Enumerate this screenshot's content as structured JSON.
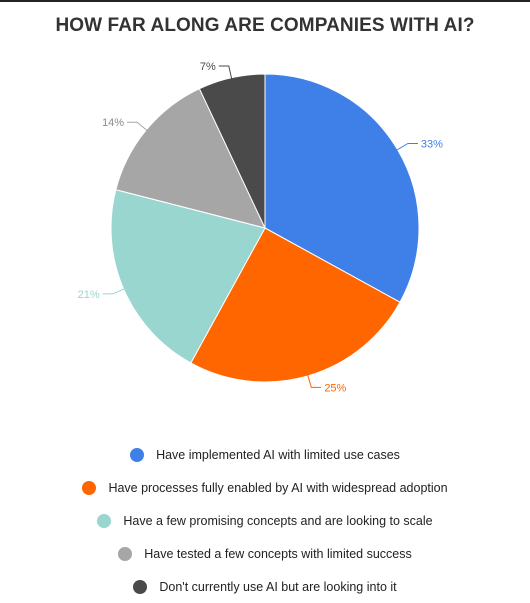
{
  "chart_data": {
    "type": "pie",
    "title": "HOW FAR ALONG ARE COMPANIES WITH AI?",
    "slices": [
      {
        "label": "Have implemented AI with limited use cases",
        "value": 33,
        "value_label": "33%",
        "color": "#3f7fe8"
      },
      {
        "label": "Have processes fully enabled by AI with widespread adoption",
        "value": 25,
        "value_label": "25%",
        "color": "#ff6600"
      },
      {
        "label": "Have a few promising concepts and are looking to scale",
        "value": 21,
        "value_label": "21%",
        "color": "#99d6cf"
      },
      {
        "label": "Have tested a few concepts with limited success",
        "value": 14,
        "value_label": "14%",
        "color": "#a6a6a6"
      },
      {
        "label": "Don't currently use AI but are looking into it",
        "value": 7,
        "value_label": "7%",
        "color": "#4a4a4a"
      }
    ],
    "legend_position": "bottom"
  }
}
